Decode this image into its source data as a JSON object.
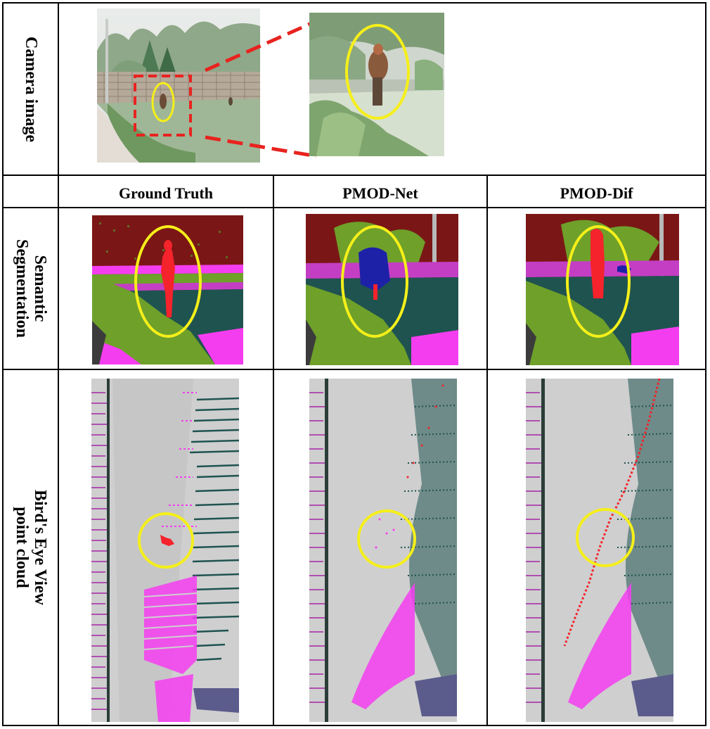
{
  "rows": {
    "camera_label": "Camera image",
    "semantic_label_line1": "Semantic",
    "semantic_label_line2": "Segmentation",
    "bev_label_line1": "Bird's Eye View",
    "bev_label_line2": "point cloud"
  },
  "columns": {
    "ground_truth": "Ground Truth",
    "pmod_net": "PMOD-Net",
    "pmod_dif": "PMOD-Dif"
  },
  "colors": {
    "highlight_ellipse": "#f5ef1a",
    "zoom_box": "#e8231f",
    "person_class": "#f4232c",
    "sidewalk_class": "#f53df0",
    "vegetation_class": "#6ea02a",
    "terrain_class": "#1f5350",
    "building_class": "#7a1716",
    "car_class": "#1d21a7",
    "bev_background": "#cfcfcf"
  }
}
